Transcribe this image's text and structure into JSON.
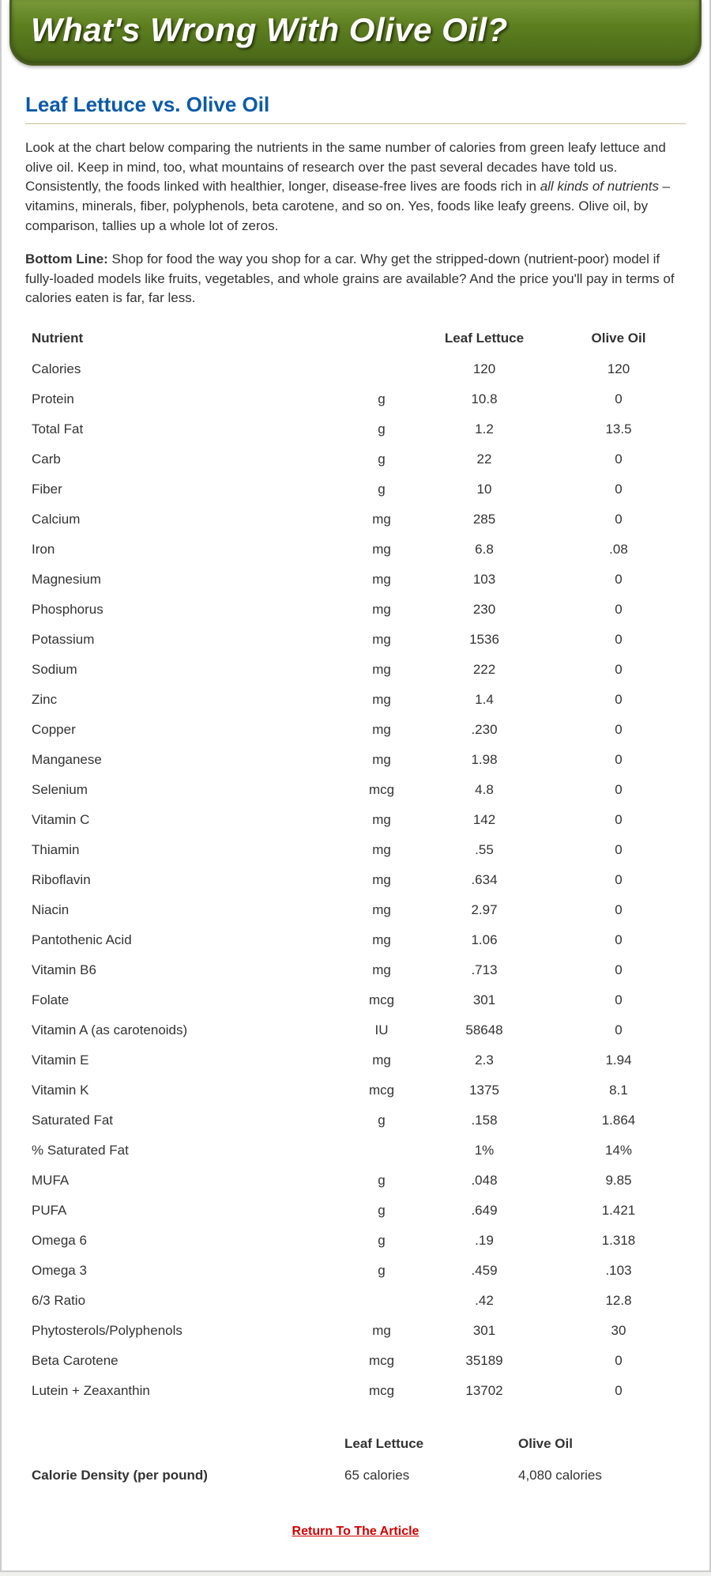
{
  "banner": {
    "title": "What's Wrong With Olive Oil?"
  },
  "subtitle": "Leaf Lettuce vs. Olive Oil",
  "intro_html": "Look at the chart below comparing the nutrients in the same number of calories from green leafy lettuce and olive oil.  Keep in mind, too, what mountains of research over the past several decades have told us.  Consistently, the foods linked with healthier, longer, disease-free lives are foods rich in <em>all kinds of nutrients</em> – vitamins, minerals, fiber, polyphenols, beta carotene, and so on. Yes, foods like leafy greens. Olive oil, by comparison, tallies up a whole lot of zeros.",
  "bottom_html": "<strong>Bottom Line:</strong> Shop for food the way you shop for a car.  Why get the stripped-down (nutrient-poor) model if fully-loaded models like fruits, vegetables, and whole grains are available? And the price you'll pay in terms of calories eaten is far, far less.",
  "table": {
    "headers": {
      "nutrient": "Nutrient",
      "unit": "",
      "lettuce": "Leaf Lettuce",
      "olive": "Olive Oil"
    },
    "rows": [
      {
        "n": "Calories",
        "u": "",
        "l": "120",
        "o": "120"
      },
      {
        "n": "Protein",
        "u": "g",
        "l": "10.8",
        "o": "0"
      },
      {
        "n": "Total Fat",
        "u": "g",
        "l": "1.2",
        "o": "13.5"
      },
      {
        "n": "Carb",
        "u": "g",
        "l": "22",
        "o": "0"
      },
      {
        "n": "Fiber",
        "u": "g",
        "l": "10",
        "o": "0"
      },
      {
        "n": "Calcium",
        "u": "mg",
        "l": "285",
        "o": "0"
      },
      {
        "n": "Iron",
        "u": "mg",
        "l": "6.8",
        "o": ".08"
      },
      {
        "n": "Magnesium",
        "u": "mg",
        "l": "103",
        "o": "0"
      },
      {
        "n": "Phosphorus",
        "u": "mg",
        "l": "230",
        "o": "0"
      },
      {
        "n": "Potassium",
        "u": "mg",
        "l": "1536",
        "o": "0"
      },
      {
        "n": "Sodium",
        "u": "mg",
        "l": "222",
        "o": "0"
      },
      {
        "n": "Zinc",
        "u": "mg",
        "l": "1.4",
        "o": "0"
      },
      {
        "n": "Copper",
        "u": "mg",
        "l": ".230",
        "o": "0"
      },
      {
        "n": "Manganese",
        "u": "mg",
        "l": "1.98",
        "o": "0"
      },
      {
        "n": "Selenium",
        "u": "mcg",
        "l": "4.8",
        "o": "0"
      },
      {
        "n": "Vitamin C",
        "u": "mg",
        "l": "142",
        "o": "0"
      },
      {
        "n": "Thiamin",
        "u": "mg",
        "l": ".55",
        "o": "0"
      },
      {
        "n": "Riboflavin",
        "u": "mg",
        "l": ".634",
        "o": "0"
      },
      {
        "n": "Niacin",
        "u": "mg",
        "l": "2.97",
        "o": "0"
      },
      {
        "n": "Pantothenic Acid",
        "u": "mg",
        "l": "1.06",
        "o": "0"
      },
      {
        "n": "Vitamin B6",
        "u": "mg",
        "l": ".713",
        "o": "0"
      },
      {
        "n": "Folate",
        "u": "mcg",
        "l": "301",
        "o": "0"
      },
      {
        "n": "Vitamin A (as carotenoids)",
        "u": "IU",
        "l": "58648",
        "o": "0"
      },
      {
        "n": "Vitamin E",
        "u": "mg",
        "l": "2.3",
        "o": "1.94"
      },
      {
        "n": "Vitamin K",
        "u": "mcg",
        "l": "1375",
        "o": "8.1"
      },
      {
        "n": "Saturated Fat",
        "u": "g",
        "l": ".158",
        "o": "1.864"
      },
      {
        "n": "% Saturated Fat",
        "u": "",
        "l": "1%",
        "o": "14%"
      },
      {
        "n": "MUFA",
        "u": "g",
        "l": ".048",
        "o": "9.85"
      },
      {
        "n": "PUFA",
        "u": "g",
        "l": ".649",
        "o": "1.421"
      },
      {
        "n": "Omega 6",
        "u": "g",
        "l": ".19",
        "o": "1.318"
      },
      {
        "n": "Omega 3",
        "u": "g",
        "l": ".459",
        "o": ".103"
      },
      {
        "n": "6/3 Ratio",
        "u": "",
        "l": ".42",
        "o": "12.8"
      },
      {
        "n": "Phytosterols/Polyphenols",
        "u": "mg",
        "l": "301",
        "o": "30"
      },
      {
        "n": "Beta Carotene",
        "u": "mcg",
        "l": "35189",
        "o": "0"
      },
      {
        "n": "Lutein + Zeaxanthin",
        "u": "mcg",
        "l": "13702",
        "o": "0"
      }
    ]
  },
  "density": {
    "headers": {
      "blank": "",
      "lettuce": "Leaf Lettuce",
      "olive": "Olive Oil"
    },
    "label": "Calorie Density (per pound)",
    "lettuce": "65 calories",
    "olive": "4,080 calories"
  },
  "return_link": "Return To The Article"
}
